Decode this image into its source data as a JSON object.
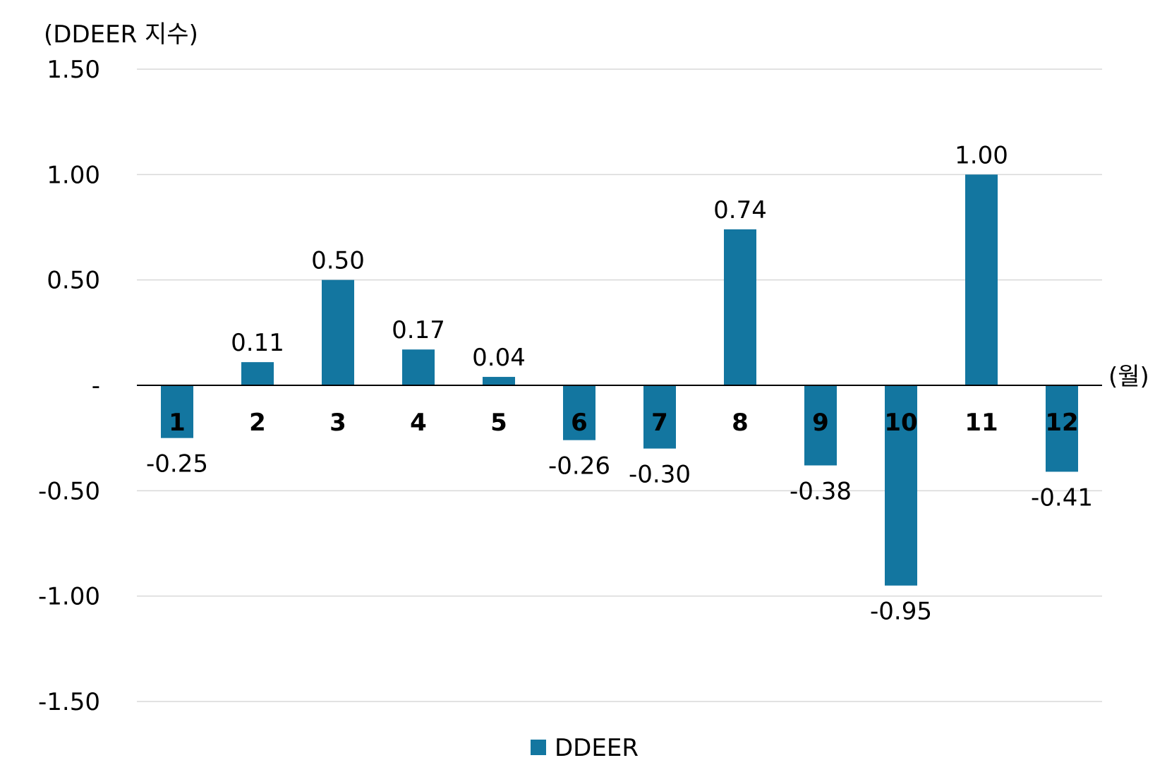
{
  "chart_data": {
    "type": "bar",
    "ylabel": "(DDEER 지수)",
    "xunit": "(월)",
    "categories": [
      "1",
      "2",
      "3",
      "4",
      "5",
      "6",
      "7",
      "8",
      "9",
      "10",
      "11",
      "12"
    ],
    "series": [
      {
        "name": "DDEER",
        "values": [
          -0.25,
          0.11,
          0.5,
          0.17,
          0.04,
          -0.26,
          -0.3,
          0.74,
          -0.38,
          -0.95,
          1.0,
          -0.41
        ],
        "labels": [
          "-0.25",
          "0.11",
          "0.50",
          "0.17",
          "0.04",
          "-0.26",
          "-0.30",
          "0.74",
          "-0.38",
          "-0.95",
          "1.00",
          "-0.41"
        ],
        "color": "#1376A0"
      }
    ],
    "yticks": [
      1.5,
      1.0,
      0.5,
      0,
      -0.5,
      -1.0,
      -1.5
    ],
    "ytick_labels": [
      "1.50",
      "1.00",
      "0.50",
      "-",
      "-0.50",
      "-1.00",
      "-1.50"
    ],
    "ylim": [
      -1.5,
      1.5
    ],
    "grid": true,
    "legend": "bottom-center"
  }
}
